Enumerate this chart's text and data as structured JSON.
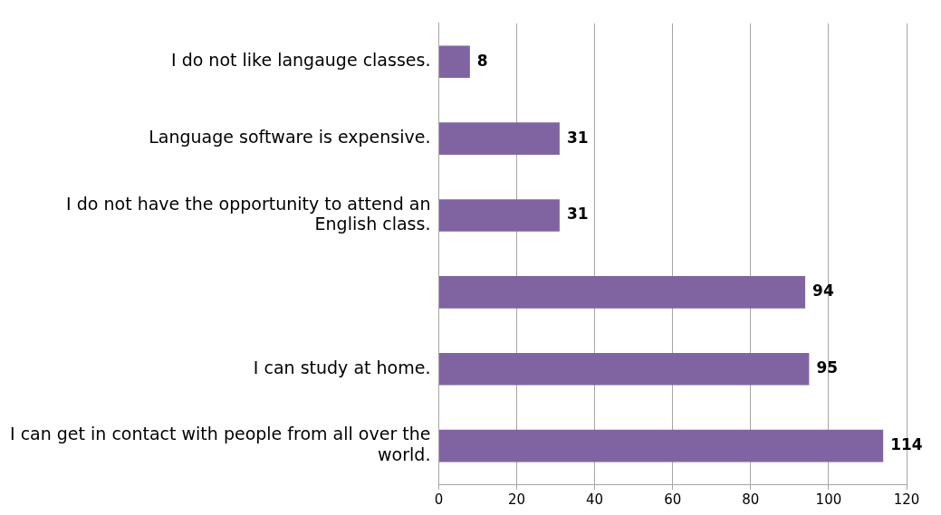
{
  "chart_data": {
    "type": "bar",
    "orientation": "horizontal",
    "categories": [
      "I do not like langauge classes.",
      "Language software is expensive.",
      "I do not have the opportunity to attend an English class.",
      null,
      "I can study at home.",
      "I can get in contact with people from all over the world."
    ],
    "values": [
      8,
      31,
      31,
      94,
      95,
      114
    ],
    "color": "#8064a2",
    "xlim": [
      0,
      120
    ],
    "xticks": [
      0,
      20,
      40,
      60,
      80,
      100,
      120
    ],
    "grid": "x",
    "data_labels": true,
    "legend": false
  }
}
